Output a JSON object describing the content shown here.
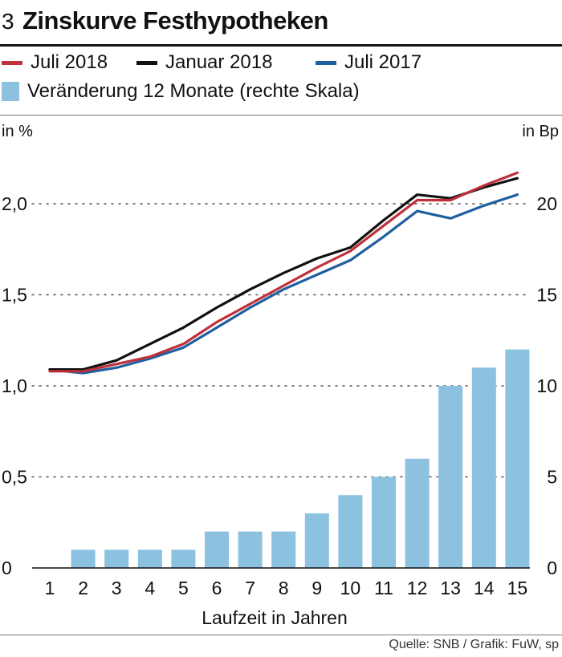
{
  "header": {
    "number": "3",
    "title": "Zinskurve Festhypotheken"
  },
  "legend": {
    "items": [
      {
        "label": "Juli 2018",
        "color": "#c0303a",
        "kind": "line"
      },
      {
        "label": "Januar 2018",
        "color": "#111111",
        "kind": "line"
      },
      {
        "label": "Juli 2017",
        "color": "#1f5f9f",
        "kind": "line"
      },
      {
        "label": "Veränderung 12 Monate (rechte Skala)",
        "color": "#8cc1e0",
        "kind": "bar"
      }
    ]
  },
  "source": "Quelle: SNB / Grafik: FuW, sp",
  "chart_data": {
    "type": "bar+line",
    "title": "Zinskurve Festhypotheken",
    "xlabel": "Laufzeit in Jahren",
    "ylabel_left": "in %",
    "ylabel_right": "in Bp",
    "categories": [
      "1",
      "2",
      "3",
      "4",
      "5",
      "6",
      "7",
      "8",
      "9",
      "10",
      "11",
      "12",
      "13",
      "14",
      "15"
    ],
    "ylim_left": [
      0,
      2.2
    ],
    "ylim_right": [
      0,
      22
    ],
    "left_ticks": [
      "0",
      "0,5",
      "1,0",
      "1,5",
      "2,0"
    ],
    "left_tick_values": [
      0,
      0.5,
      1.0,
      1.5,
      2.0
    ],
    "right_ticks": [
      "0",
      "5",
      "10",
      "15",
      "20"
    ],
    "right_tick_values": [
      0,
      5,
      10,
      15,
      20
    ],
    "bars": {
      "name": "Veränderung 12 Monate (rechte Skala)",
      "color": "#8cc1e0",
      "values": [
        0,
        1,
        1,
        1,
        1,
        2,
        2,
        2,
        3,
        4,
        5,
        6,
        10,
        11,
        12
      ]
    },
    "series": [
      {
        "name": "Juli 2017",
        "color": "#1f5f9f",
        "values": [
          1.09,
          1.07,
          1.1,
          1.15,
          1.21,
          1.32,
          1.43,
          1.53,
          1.61,
          1.69,
          1.82,
          1.96,
          1.92,
          1.99,
          2.05
        ]
      },
      {
        "name": "Januar 2018",
        "color": "#111111",
        "values": [
          1.09,
          1.09,
          1.14,
          1.23,
          1.32,
          1.43,
          1.53,
          1.62,
          1.7,
          1.76,
          1.91,
          2.05,
          2.03,
          2.09,
          2.14
        ]
      },
      {
        "name": "Juli 2018",
        "color": "#c0303a",
        "values": [
          1.08,
          1.08,
          1.12,
          1.16,
          1.23,
          1.35,
          1.45,
          1.55,
          1.65,
          1.74,
          1.88,
          2.02,
          2.02,
          2.1,
          2.17
        ]
      }
    ],
    "grid": true
  }
}
